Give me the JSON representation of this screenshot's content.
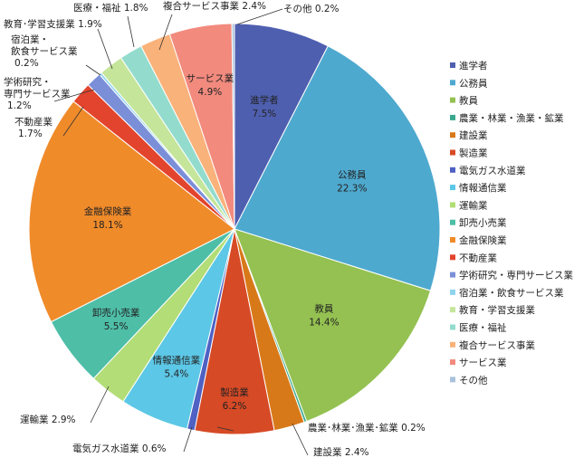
{
  "chart_data": {
    "type": "pie",
    "start_angle_deg": 0,
    "direction": "clockwise",
    "legend_position": "right",
    "slices": [
      {
        "name": "進学者",
        "value": 7.5,
        "color": "#4f5fb0",
        "label": "進学者",
        "value_label": "7.5%"
      },
      {
        "name": "公務員",
        "value": 22.3,
        "color": "#4ea9cf",
        "label": "公務員",
        "value_label": "22.3%"
      },
      {
        "name": "教員",
        "value": 14.4,
        "color": "#94c151",
        "label": "教員",
        "value_label": "14.4%"
      },
      {
        "name": "農業・林業・漁業・鉱業",
        "value": 0.2,
        "color": "#3aa88c",
        "label": "農業･林業･漁業･鉱業 0.2%",
        "value_label": ""
      },
      {
        "name": "建設業",
        "value": 2.4,
        "color": "#d87919",
        "label": "建設業 2.4%",
        "value_label": ""
      },
      {
        "name": "製造業",
        "value": 6.2,
        "color": "#d64a26",
        "label": "製造業",
        "value_label": "6.2%"
      },
      {
        "name": "電気ガス水道業",
        "value": 0.6,
        "color": "#4f61c3",
        "label": "電気ガス水道業 0.6%",
        "value_label": ""
      },
      {
        "name": "情報通信業",
        "value": 5.4,
        "color": "#5cc7e6",
        "label": "情報通信業",
        "value_label": "5.4%"
      },
      {
        "name": "運輸業",
        "value": 2.9,
        "color": "#b3dd77",
        "label": "運輸業 2.9%",
        "value_label": ""
      },
      {
        "name": "卸売小売業",
        "value": 5.5,
        "color": "#4ebea7",
        "label": "卸売小売業",
        "value_label": "5.5%"
      },
      {
        "name": "金融保険業",
        "value": 18.1,
        "color": "#f08b2a",
        "label": "金融保険業",
        "value_label": "18.1%"
      },
      {
        "name": "不動産業",
        "value": 1.7,
        "color": "#e3442d",
        "label": "不動産業",
        "value_label": "1.7%"
      },
      {
        "name": "学術研究・専門サービス業",
        "value": 1.2,
        "color": "#7b8fd8",
        "label": "学術研究・\n専門サービス業",
        "value_label": "1.2%"
      },
      {
        "name": "宿泊業・飲食サービス業",
        "value": 0.2,
        "color": "#8fd4ec",
        "label": "宿泊業・\n飲食サービス業",
        "value_label": "0.2%"
      },
      {
        "name": "教育・学習支援業",
        "value": 1.9,
        "color": "#c5e59a",
        "label": "教育･学習支援業 1.9%",
        "value_label": ""
      },
      {
        "name": "医療・福祉",
        "value": 1.8,
        "color": "#93dccd",
        "label": "医療・福祉 1.8%",
        "value_label": ""
      },
      {
        "name": "複合サービス事業",
        "value": 2.4,
        "color": "#f9b27a",
        "label": "複合サービス事業 2.4%",
        "value_label": ""
      },
      {
        "name": "サービス業",
        "value": 4.9,
        "color": "#f28a7e",
        "label": "サービス業",
        "value_label": "4.9%"
      },
      {
        "name": "その他",
        "value": 0.2,
        "color": "#a9c2dc",
        "label": "その他 0.2%",
        "value_label": ""
      }
    ],
    "legend": [
      "進学者",
      "公務員",
      "教員",
      "農業・林業・漁業・鉱業",
      "建設業",
      "製造業",
      "電気ガス水道業",
      "情報通信業",
      "運輸業",
      "卸売小売業",
      "金融保険業",
      "不動産業",
      "学術研究・専門サービス業",
      "宿泊業・飲食サービス業",
      "教育・学習支援業",
      "医療・福祉",
      "複合サービス事業",
      "サービス業",
      "その他"
    ]
  }
}
